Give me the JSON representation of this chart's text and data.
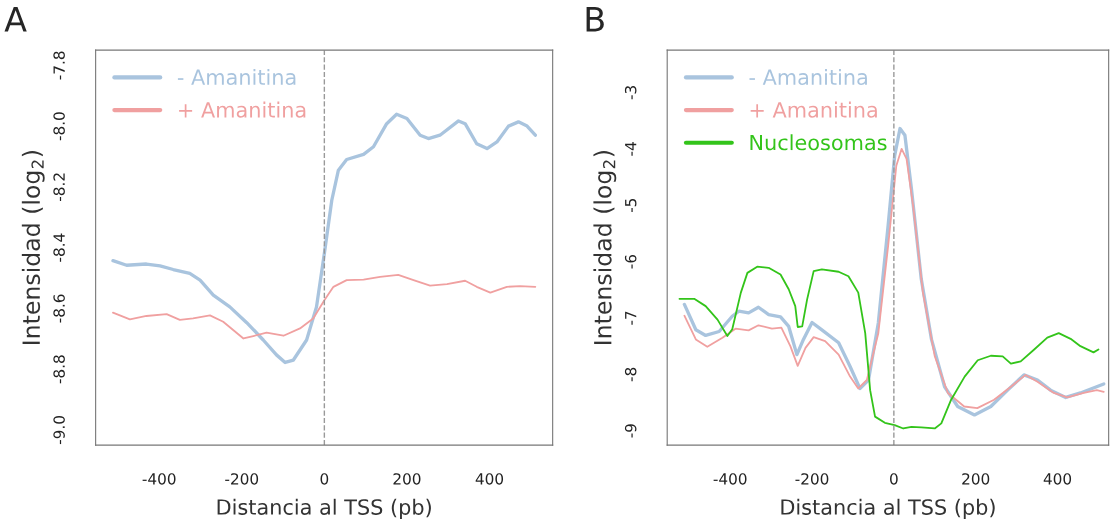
{
  "chart_data": [
    {
      "type": "line",
      "title": "A",
      "xlabel": "Distancia al TSS (pb)",
      "ylabel": "Intensidad (log$_{2}$)",
      "xlim": [
        -554,
        553
      ],
      "ylim": [
        -9.05,
        -7.75
      ],
      "xticks": [
        -400,
        -200,
        0,
        200,
        400
      ],
      "yticks": [
        -7.8,
        {
          "value": -8,
          "label": "-8.0"
        },
        -8.2,
        -8.4,
        -8.6,
        -8.8,
        {
          "value": -9,
          "label": "-9.0"
        }
      ],
      "grid": false,
      "legend": "top left",
      "ref_lines": [
        {
          "axis": "x",
          "value": 0,
          "color": "#999999",
          "line_style": "dashed"
        }
      ],
      "series": [
        {
          "name": "- Amanitina",
          "color": "#a9c4de",
          "x": [
            -512,
            -479,
            -431,
            -398,
            -366,
            -326,
            -301,
            -269,
            -229,
            -188,
            -148,
            -116,
            -95,
            -75,
            -43,
            -19,
            0,
            18,
            34,
            54,
            95,
            119,
            151,
            175,
            200,
            232,
            252,
            280,
            325,
            341,
            369,
            394,
            418,
            446,
            470,
            491,
            511
          ],
          "values": [
            -8.443,
            -8.458,
            -8.454,
            -8.46,
            -8.472,
            -8.485,
            -8.507,
            -8.556,
            -8.595,
            -8.647,
            -8.704,
            -8.753,
            -8.778,
            -8.77,
            -8.704,
            -8.595,
            -8.419,
            -8.244,
            -8.145,
            -8.11,
            -8.093,
            -8.068,
            -7.992,
            -7.961,
            -7.975,
            -8.03,
            -8.041,
            -8.03,
            -7.983,
            -7.992,
            -8.058,
            -8.074,
            -8.052,
            -8.0,
            -7.986,
            -8.0,
            -8.03
          ]
        },
        {
          "name": "+ Amanitina",
          "color": "#f0a0a0",
          "x": [
            -512,
            -471,
            -431,
            -382,
            -350,
            -318,
            -277,
            -245,
            -196,
            -172,
            -140,
            -99,
            -59,
            -27,
            0,
            22,
            54,
            95,
            135,
            179,
            216,
            256,
            297,
            341,
            369,
            402,
            442,
            474,
            511
          ],
          "values": [
            -8.614,
            -8.636,
            -8.625,
            -8.619,
            -8.638,
            -8.633,
            -8.623,
            -8.644,
            -8.699,
            -8.691,
            -8.68,
            -8.69,
            -8.666,
            -8.633,
            -8.573,
            -8.529,
            -8.507,
            -8.505,
            -8.496,
            -8.49,
            -8.507,
            -8.525,
            -8.52,
            -8.509,
            -8.529,
            -8.548,
            -8.529,
            -8.527,
            -8.529
          ]
        }
      ]
    },
    {
      "type": "line",
      "title": "B",
      "xlabel": "Distancia al TSS (pb)",
      "ylabel": "Intensidad (log$_{2}$)",
      "xlim": [
        -554,
        525
      ],
      "ylim": [
        -9.255,
        -2.25
      ],
      "xticks": [
        -400,
        -200,
        0,
        200,
        400
      ],
      "yticks": [
        -3,
        -4,
        -5,
        -6,
        -7,
        -8,
        -9
      ],
      "grid": false,
      "legend": "top left",
      "ref_lines": [
        {
          "axis": "x",
          "value": 0,
          "color": "#999999",
          "line_style": "dashed"
        }
      ],
      "series": [
        {
          "name": "- Amanitina",
          "color": "#a9c4de",
          "x": [
            -512,
            -484,
            -460,
            -427,
            -395,
            -379,
            -355,
            -331,
            -306,
            -277,
            -257,
            -237,
            -221,
            -200,
            -176,
            -135,
            -107,
            -83,
            -62,
            -38,
            -14,
            2,
            15,
            27,
            43,
            67,
            92,
            124,
            156,
            197,
            237,
            278,
            318,
            351,
            383,
            420,
            456,
            513
          ],
          "values": [
            -6.76,
            -7.21,
            -7.31,
            -7.24,
            -6.97,
            -6.88,
            -6.91,
            -6.81,
            -6.94,
            -6.98,
            -7.15,
            -7.65,
            -7.38,
            -7.08,
            -7.21,
            -7.44,
            -7.86,
            -8.25,
            -8.1,
            -7.09,
            -5.36,
            -4.12,
            -3.64,
            -3.76,
            -4.71,
            -6.31,
            -7.38,
            -8.22,
            -8.57,
            -8.72,
            -8.57,
            -8.28,
            -8.01,
            -8.1,
            -8.28,
            -8.41,
            -8.33,
            -8.17
          ]
        },
        {
          "name": "+ Amanitina",
          "color": "#f0a0a0",
          "x": [
            -512,
            -484,
            -456,
            -419,
            -387,
            -355,
            -331,
            -298,
            -275,
            -253,
            -235,
            -216,
            -196,
            -168,
            -135,
            -107,
            -87,
            -66,
            -38,
            -14,
            6,
            19,
            31,
            47,
            71,
            100,
            132,
            172,
            204,
            245,
            286,
            322,
            351,
            391,
            424,
            464,
            496,
            513
          ],
          "values": [
            -6.96,
            -7.38,
            -7.51,
            -7.35,
            -7.19,
            -7.22,
            -7.13,
            -7.19,
            -7.17,
            -7.5,
            -7.85,
            -7.53,
            -7.34,
            -7.41,
            -7.65,
            -8.04,
            -8.25,
            -8.1,
            -7.27,
            -5.72,
            -4.3,
            -4.0,
            -4.18,
            -5.01,
            -6.55,
            -7.68,
            -8.33,
            -8.57,
            -8.6,
            -8.45,
            -8.22,
            -8.01,
            -8.13,
            -8.33,
            -8.41,
            -8.33,
            -8.28,
            -8.31
          ]
        },
        {
          "name": "Nucleosomas",
          "color": "#33c41a",
          "x": [
            -524,
            -488,
            -460,
            -431,
            -407,
            -395,
            -374,
            -358,
            -334,
            -306,
            -277,
            -257,
            -241,
            -235,
            -224,
            -212,
            -196,
            -176,
            -135,
            -111,
            -87,
            -70,
            -58,
            -46,
            -22,
            2,
            23,
            43,
            67,
            100,
            116,
            140,
            173,
            205,
            237,
            266,
            286,
            310,
            343,
            375,
            403,
            432,
            456,
            488,
            500
          ],
          "values": [
            -6.66,
            -6.66,
            -6.79,
            -7.03,
            -7.32,
            -7.2,
            -6.55,
            -6.2,
            -6.09,
            -6.11,
            -6.23,
            -6.49,
            -6.79,
            -7.16,
            -7.15,
            -6.67,
            -6.17,
            -6.14,
            -6.18,
            -6.26,
            -6.55,
            -7.27,
            -8.28,
            -8.75,
            -8.86,
            -8.9,
            -8.96,
            -8.93,
            -8.94,
            -8.96,
            -8.87,
            -8.45,
            -8.04,
            -7.75,
            -7.67,
            -7.68,
            -7.81,
            -7.77,
            -7.56,
            -7.35,
            -7.27,
            -7.37,
            -7.5,
            -7.61,
            -7.56
          ]
        }
      ]
    }
  ]
}
